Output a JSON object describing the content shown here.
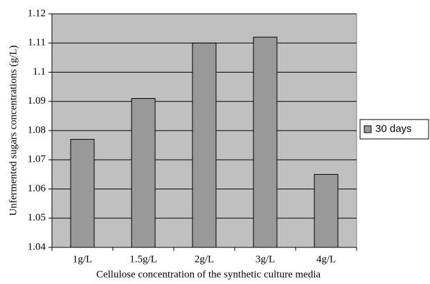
{
  "chart_data": {
    "type": "bar",
    "x_label": "Cellulose concentration of the synthetic culture media",
    "y_label": "Unfermented sugars concentrations (g/L)",
    "categories": [
      "1g/L",
      "1.5g/L",
      "2g/L",
      "3g/L",
      "4g/L"
    ],
    "series": [
      {
        "name": "30 days",
        "color": "#999999",
        "values": [
          1.077,
          1.091,
          1.11,
          1.112,
          1.065
        ]
      }
    ],
    "ylim": [
      1.04,
      1.12
    ],
    "yticks": [
      1.04,
      1.05,
      1.06,
      1.07,
      1.08,
      1.09,
      1.1,
      1.11,
      1.12
    ],
    "grid": true,
    "legend": "right",
    "background": "#c0c0c0"
  }
}
